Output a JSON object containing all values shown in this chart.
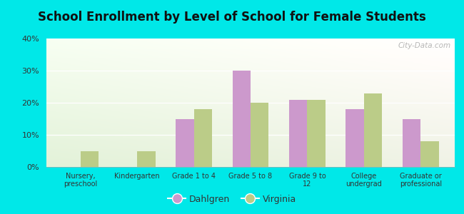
{
  "title": "School Enrollment by Level of School for Female Students",
  "categories": [
    "Nursery,\npreschool",
    "Kindergarten",
    "Grade 1 to 4",
    "Grade 5 to 8",
    "Grade 9 to\n12",
    "College\nundergrad",
    "Graduate or\nprofessional"
  ],
  "dahlgren": [
    0,
    0,
    15,
    30,
    21,
    18,
    15
  ],
  "virginia": [
    5,
    5,
    18,
    20,
    21,
    23,
    8
  ],
  "dahlgren_color": "#cc99cc",
  "virginia_color": "#bbcc88",
  "background_color": "#00e8e8",
  "ylim": [
    0,
    40
  ],
  "yticks": [
    0,
    10,
    20,
    30,
    40
  ],
  "bar_width": 0.32,
  "legend_labels": [
    "Dahlgren",
    "Virginia"
  ],
  "watermark": "City-Data.com"
}
